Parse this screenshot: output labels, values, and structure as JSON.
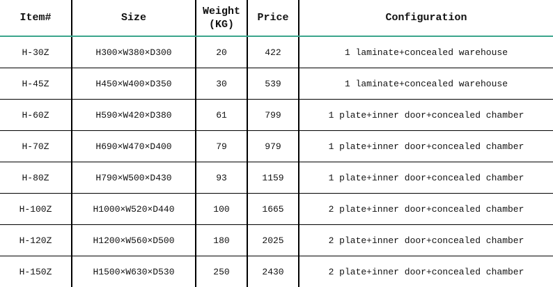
{
  "headers": {
    "item": "Item#",
    "size": "Size",
    "weight_line1": "Weight",
    "weight_line2": "(KG)",
    "price": "Price",
    "configuration": "Configuration"
  },
  "rows": [
    {
      "item": "H-30Z",
      "size": "H300×W380×D300",
      "weight": "20",
      "price": "422",
      "configuration": "1 laminate+concealed warehouse"
    },
    {
      "item": "H-45Z",
      "size": "H450×W400×D350",
      "weight": "30",
      "price": "539",
      "configuration": "1 laminate+concealed warehouse"
    },
    {
      "item": "H-60Z",
      "size": "H590×W420×D380",
      "weight": "61",
      "price": "799",
      "configuration": "1 plate+inner door+concealed chamber"
    },
    {
      "item": "H-70Z",
      "size": "H690×W470×D400",
      "weight": "79",
      "price": "979",
      "configuration": "1 plate+inner door+concealed chamber"
    },
    {
      "item": "H-80Z",
      "size": "H790×W500×D430",
      "weight": "93",
      "price": "1159",
      "configuration": "1 plate+inner door+concealed chamber"
    },
    {
      "item": "H-100Z",
      "size": "H1000×W520×D440",
      "weight": "100",
      "price": "1665",
      "configuration": "2 plate+inner door+concealed chamber"
    },
    {
      "item": "H-120Z",
      "size": "H1200×W560×D500",
      "weight": "180",
      "price": "2025",
      "configuration": "2 plate+inner door+concealed chamber"
    },
    {
      "item": "H-150Z",
      "size": "H1500×W630×D530",
      "weight": "250",
      "price": "2430",
      "configuration": "2 plate+inner door+concealed chamber"
    }
  ],
  "colors": {
    "header_rule": "#3aa58c",
    "grid": "#000000"
  }
}
